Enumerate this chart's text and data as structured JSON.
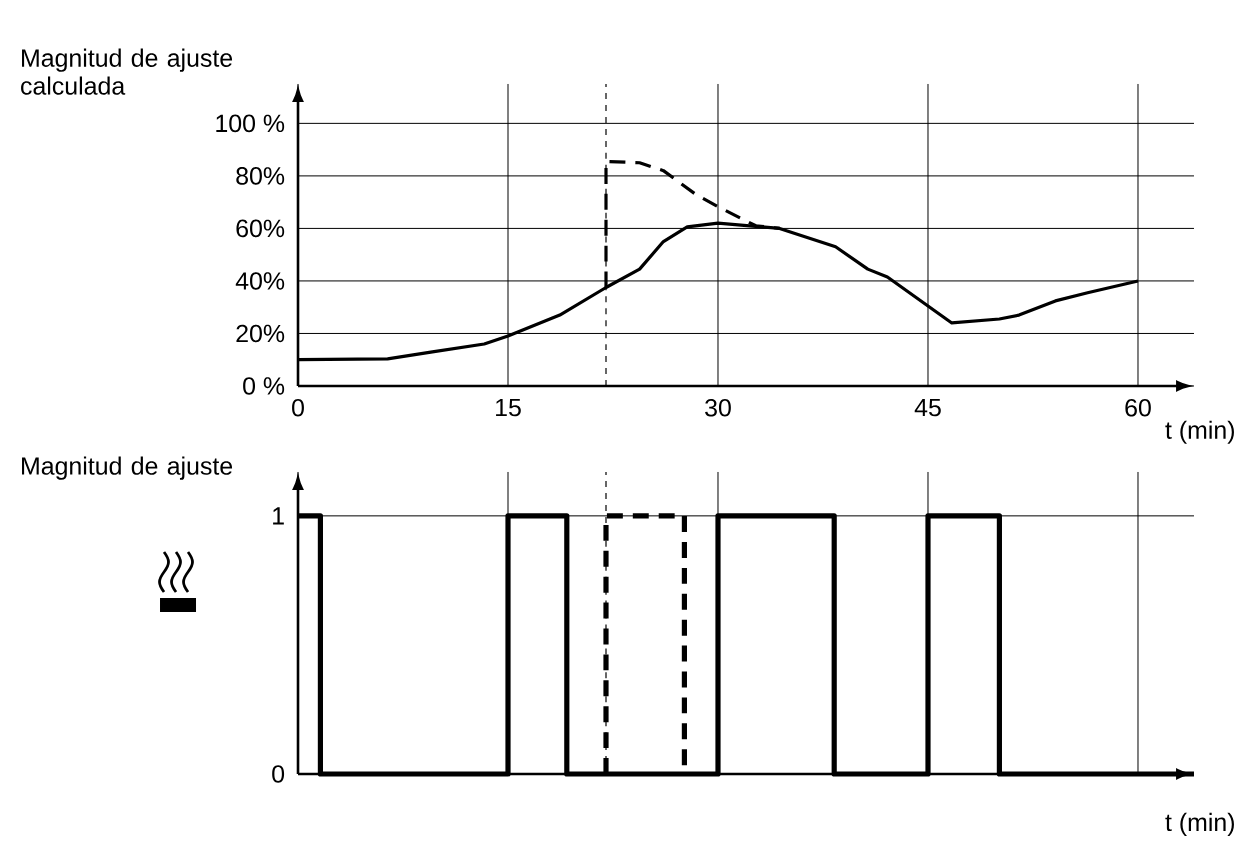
{
  "chart_data": [
    {
      "type": "line",
      "ylabel": "Magnitud de ajuste calculada",
      "xlabel": "t (min)",
      "xlim": [
        0,
        64
      ],
      "ylim": [
        0,
        115
      ],
      "xticks": [
        0,
        15,
        30,
        45,
        60
      ],
      "yticks": [
        {
          "value": 0,
          "label": "0 %"
        },
        {
          "value": 20,
          "label": "20%"
        },
        {
          "value": 40,
          "label": "40%"
        },
        {
          "value": 60,
          "label": "60%"
        },
        {
          "value": 80,
          "label": "80%"
        },
        {
          "value": 100,
          "label": "100 %"
        }
      ],
      "grid": true,
      "series": [
        {
          "color": "#000000",
          "line_style": "solid",
          "x": [
            0,
            6.4,
            9.6,
            13.3,
            15,
            18.7,
            22,
            24.4,
            26.1,
            27.8,
            30,
            34.4,
            38.4,
            40.7,
            42.1,
            46.7,
            50.1,
            51.5,
            54.1,
            56.4,
            60
          ],
          "values": [
            10,
            10.3,
            13,
            16,
            19,
            27,
            37.5,
            44.5,
            55,
            60.6,
            62,
            60,
            53,
            44.5,
            41.5,
            24,
            25.5,
            27,
            32.4,
            35.5,
            40
          ]
        },
        {
          "color": "#000000",
          "line_style": "dashed",
          "x": [
            22,
            22,
            24.4,
            26.1,
            28.4,
            30.1,
            32.7,
            34.4
          ],
          "values": [
            37.5,
            85.5,
            85,
            82,
            73,
            68,
            61,
            60
          ]
        }
      ],
      "ref_lines": [
        {
          "axis": "x",
          "value": 22,
          "line_style": "dashed"
        }
      ]
    },
    {
      "type": "step",
      "ylabel": "Magnitud de ajuste",
      "xlabel": "t (min)",
      "xlim": [
        0,
        64
      ],
      "ylim": [
        0,
        1.17
      ],
      "xticks": [
        0,
        15,
        30,
        45,
        60
      ],
      "yticks": [
        0,
        1
      ],
      "grid": true,
      "tick_labels": "y",
      "series": [
        {
          "color": "#000000",
          "line_style": "solid",
          "x": [
            0,
            1.6,
            15,
            19.2,
            30,
            38.3,
            45,
            50.1,
            64
          ],
          "values": [
            1,
            0,
            1,
            0,
            1,
            0,
            1,
            0,
            0
          ]
        },
        {
          "color": "#000000",
          "line_style": "dashed",
          "x": [
            22,
            22,
            27.6
          ],
          "values": [
            0,
            1,
            0
          ]
        }
      ],
      "ref_lines": [
        {
          "axis": "x",
          "value": 22,
          "line_style": "dashed"
        }
      ]
    }
  ]
}
